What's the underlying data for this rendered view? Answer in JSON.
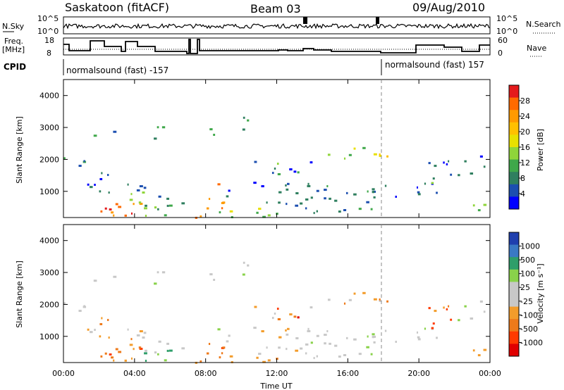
{
  "header": {
    "station": "Saskatoon (fitACF)",
    "beam": "Beam 03",
    "date": "09/Aug/2010"
  },
  "top_panels": {
    "nsky_label": "N.Sky",
    "nsky_ticks": [
      "10^5",
      "10^0"
    ],
    "nsearch_label": "N.Search",
    "nsearch_ticks": [
      "10^5",
      "10^0"
    ],
    "freq_label_1": "Freq.",
    "freq_label_2": "[MHz]",
    "freq_ticks": [
      "18",
      "8"
    ],
    "nave_label": "Nave",
    "nave_ticks": [
      "60",
      "0"
    ],
    "cpid_label": "CPID",
    "cpid_segments": [
      {
        "label": "normalsound (fast) -157",
        "start": "00:00"
      },
      {
        "label": "normalsound (fast) 157",
        "start": "18:00"
      }
    ]
  },
  "chart_data": [
    {
      "type": "heatmap",
      "name": "power-panel",
      "xlabel": "",
      "ylabel": "Slant Range [km]",
      "x_range_hours": [
        0,
        24
      ],
      "ylim": [
        180,
        4500
      ],
      "yticks": [
        "4000",
        "3000",
        "2000",
        "1000"
      ],
      "colorbar_label": "Power [dB]",
      "colorbar_ticks": [
        "28",
        "24",
        "20",
        "16",
        "12",
        "8",
        "4"
      ],
      "colorbar_colors": [
        "#e41a1c",
        "#ff6a00",
        "#ff9a00",
        "#ffc000",
        "#e8e000",
        "#8fd53a",
        "#3fa84a",
        "#2f7f5f",
        "#1c4fb0",
        "#0000ff"
      ]
    },
    {
      "type": "heatmap",
      "name": "velocity-panel",
      "xlabel": "Time UT",
      "ylabel": "Slant Range [km]",
      "x_range_hours": [
        0,
        24
      ],
      "xticks": [
        "00:00",
        "04:00",
        "08:00",
        "12:00",
        "16:00",
        "20:00",
        "00:00"
      ],
      "ylim": [
        180,
        4500
      ],
      "yticks": [
        "4000",
        "3000",
        "2000",
        "1000"
      ],
      "colorbar_label": "Velocity [m s⁻¹]",
      "colorbar_ticks": [
        "1000",
        "500",
        "100",
        "25",
        "-25",
        "-100",
        "-500",
        "-1000"
      ],
      "colorbar_colors": [
        "#1f3fae",
        "#3a79c4",
        "#2e9e6a",
        "#89d24a",
        "#c8c8c8",
        "#c8c8c8",
        "#f39c2b",
        "#ee7a1a",
        "#ff3a00",
        "#e00000"
      ]
    }
  ]
}
